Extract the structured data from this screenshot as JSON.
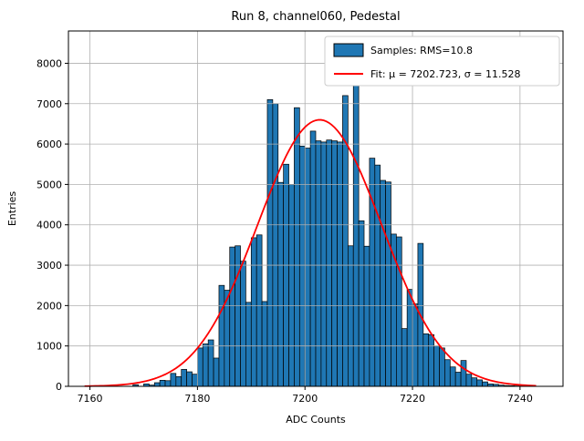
{
  "chart_data": {
    "type": "bar",
    "subtype": "histogram",
    "title": "Run 8, channel060, Pedestal",
    "xlabel": "ADC Counts",
    "ylabel": "Entries",
    "xlim": [
      7156,
      7248
    ],
    "ylim": [
      0,
      8800
    ],
    "xticks": [
      7160,
      7180,
      7200,
      7220,
      7240
    ],
    "yticks": [
      0,
      1000,
      2000,
      3000,
      4000,
      5000,
      6000,
      7000,
      8000
    ],
    "grid": true,
    "legend_position": "upper right",
    "bin_start": 7168,
    "bin_width": 1,
    "counts": [
      40,
      0,
      60,
      30,
      90,
      150,
      140,
      320,
      240,
      420,
      360,
      300,
      950,
      1050,
      1150,
      700,
      2500,
      2380,
      3450,
      3480,
      3100,
      2080,
      3680,
      3750,
      2100,
      7100,
      7000,
      5050,
      5500,
      5000,
      6900,
      5950,
      5900,
      6320,
      6080,
      6050,
      6100,
      6080,
      6050,
      7200,
      3480,
      7570,
      4100,
      3470,
      5650,
      5480,
      5100,
      5060,
      3770,
      3700,
      1430,
      2400,
      2040,
      3540,
      1300,
      1280,
      1000,
      950,
      660,
      480,
      350,
      640,
      300,
      210,
      160,
      110,
      60,
      50,
      30,
      20,
      15,
      10,
      8
    ],
    "rms": 10.8,
    "fit": {
      "mu": 7202.723,
      "sigma": 11.528,
      "amplitude": 6600
    },
    "legend": [
      {
        "label": "Samples: RMS=10.8",
        "type": "patch",
        "color": "#1f77b4"
      },
      {
        "label": "Fit: μ = 7202.723, σ = 11.528",
        "type": "line",
        "color": "#ff0000"
      }
    ],
    "colors": {
      "bar_fill": "#1f77b4",
      "bar_edge": "#000000",
      "fit_line": "#ff0000",
      "grid": "#b0b0b0",
      "axes": "#000000",
      "background": "#ffffff"
    }
  }
}
